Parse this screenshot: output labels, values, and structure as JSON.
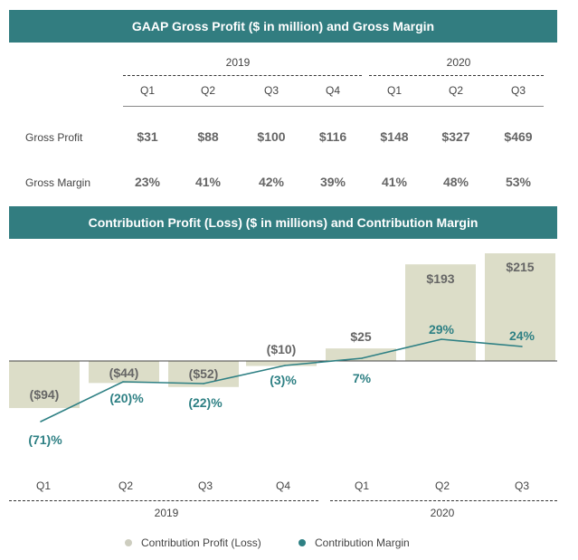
{
  "table": {
    "title": "GAAP Gross Profit ($ in million) and Gross Margin",
    "years": [
      "2019",
      "2020"
    ],
    "quarters": [
      "Q1",
      "Q2",
      "Q3",
      "Q4",
      "Q1",
      "Q2",
      "Q3"
    ],
    "rows": [
      {
        "label": "Gross Profit",
        "values": [
          "$31",
          "$88",
          "$100",
          "$116",
          "$148",
          "$327",
          "$469"
        ]
      },
      {
        "label": "Gross Margin",
        "values": [
          "23%",
          "41%",
          "42%",
          "39%",
          "41%",
          "48%",
          "53%"
        ]
      }
    ]
  },
  "colors": {
    "banner": "#327d80",
    "bar": "#dcddc8",
    "line": "#2e8084",
    "bar_label": "#666666"
  },
  "chart_data": [
    {
      "type": "table",
      "title": "GAAP Gross Profit ($ in million) and Gross Margin",
      "categories": [
        "2019 Q1",
        "2019 Q2",
        "2019 Q3",
        "2019 Q4",
        "2020 Q1",
        "2020 Q2",
        "2020 Q3"
      ],
      "series": [
        {
          "name": "Gross Profit ($M)",
          "values": [
            31,
            88,
            100,
            116,
            148,
            327,
            469
          ]
        },
        {
          "name": "Gross Margin (%)",
          "values": [
            23,
            41,
            42,
            39,
            41,
            48,
            53
          ]
        }
      ]
    },
    {
      "type": "bar",
      "title": "Contribution Profit (Loss) ($ in millions) and Contribution Margin",
      "categories": [
        "Q1",
        "Q2",
        "Q3",
        "Q4",
        "Q1",
        "Q2",
        "Q3"
      ],
      "year_groups": [
        {
          "label": "2019",
          "quarters": 4
        },
        {
          "label": "2020",
          "quarters": 3
        }
      ],
      "series": [
        {
          "name": "Contribution Profit (Loss)",
          "kind": "bar",
          "values": [
            -94,
            -44,
            -52,
            -10,
            25,
            193,
            215
          ],
          "labels": [
            "($94)",
            "($44)",
            "($52)",
            "($10)",
            "$25",
            "$193",
            "$215"
          ]
        },
        {
          "name": "Contribution Margin",
          "kind": "line",
          "values": [
            -71,
            -20,
            -22,
            -3,
            7,
            29,
            24
          ],
          "labels": [
            "(71)%",
            "(20)%",
            "(22)%",
            "(3)%",
            "7%",
            "29%",
            "24%"
          ]
        }
      ],
      "legend": [
        "Contribution Profit (Loss)",
        "Contribution Margin"
      ],
      "legend_position": "bottom",
      "grid": false
    }
  ]
}
